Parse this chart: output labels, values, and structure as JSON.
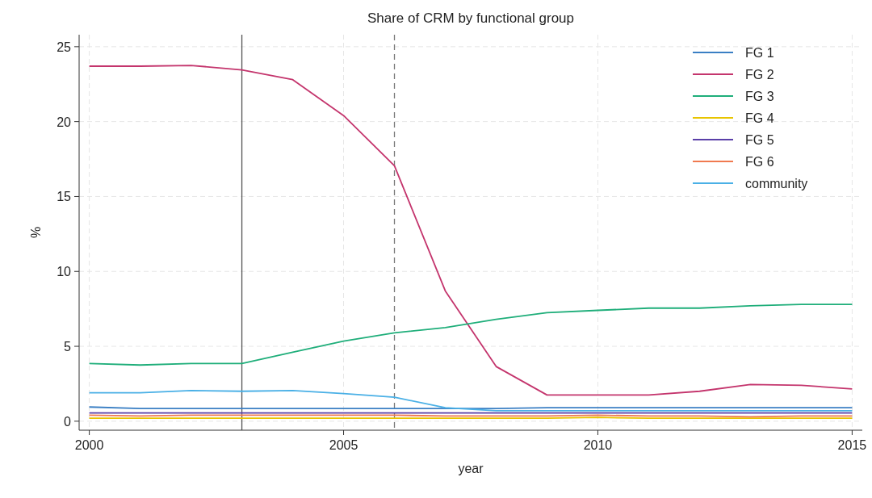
{
  "chart_data": {
    "type": "line",
    "title": "Share of CRM by functional group",
    "xlabel": "year",
    "ylabel": "%",
    "x": [
      2000,
      2001,
      2002,
      2003,
      2004,
      2005,
      2006,
      2007,
      2008,
      2009,
      2010,
      2011,
      2012,
      2013,
      2014,
      2015
    ],
    "xlim": [
      1999.8,
      2015.2
    ],
    "xticks": [
      2000,
      2005,
      2010,
      2015
    ],
    "ylim": [
      -0.6,
      25.8
    ],
    "yticks": [
      0,
      5,
      10,
      15,
      20,
      25
    ],
    "grid": true,
    "legend": "top right",
    "line_style": "solid",
    "ref_lines": [
      {
        "axis": "x",
        "value": 2003,
        "color": "#555555",
        "line_style": "solid"
      },
      {
        "axis": "x",
        "value": 2006,
        "color": "#777777",
        "line_style": "dashed"
      }
    ],
    "series": [
      {
        "name": "FG 1",
        "color": "#3a7fc4",
        "values": [
          0.95,
          0.85,
          0.85,
          0.85,
          0.85,
          0.85,
          0.85,
          0.85,
          0.85,
          0.9,
          0.9,
          0.9,
          0.9,
          0.9,
          0.9,
          0.9
        ]
      },
      {
        "name": "FG 2",
        "color": "#c4356d",
        "values": [
          23.7,
          23.7,
          23.75,
          23.45,
          22.8,
          20.4,
          17.05,
          8.7,
          3.65,
          1.75,
          1.75,
          1.75,
          2.0,
          2.45,
          2.4,
          2.15
        ]
      },
      {
        "name": "FG 3",
        "color": "#1fae7a",
        "values": [
          3.85,
          3.75,
          3.85,
          3.85,
          4.6,
          5.35,
          5.9,
          6.25,
          6.8,
          7.25,
          7.4,
          7.55,
          7.55,
          7.7,
          7.8,
          7.8
        ]
      },
      {
        "name": "FG 4",
        "color": "#e8c400",
        "values": [
          0.2,
          0.2,
          0.2,
          0.2,
          0.2,
          0.2,
          0.2,
          0.2,
          0.2,
          0.2,
          0.25,
          0.2,
          0.2,
          0.2,
          0.2,
          0.2
        ]
      },
      {
        "name": "FG 5",
        "color": "#5a3fa8",
        "values": [
          0.55,
          0.55,
          0.55,
          0.55,
          0.55,
          0.55,
          0.55,
          0.55,
          0.55,
          0.55,
          0.55,
          0.55,
          0.55,
          0.55,
          0.55,
          0.55
        ]
      },
      {
        "name": "FG 6",
        "color": "#f07a50",
        "values": [
          0.4,
          0.35,
          0.4,
          0.4,
          0.4,
          0.4,
          0.4,
          0.35,
          0.35,
          0.35,
          0.4,
          0.35,
          0.35,
          0.3,
          0.35,
          0.35
        ]
      },
      {
        "name": "community",
        "color": "#4ab0e6",
        "values": [
          1.9,
          1.9,
          2.05,
          2.0,
          2.05,
          1.85,
          1.6,
          0.9,
          0.7,
          0.7,
          0.7,
          0.7,
          0.7,
          0.7,
          0.7,
          0.7
        ]
      }
    ]
  }
}
